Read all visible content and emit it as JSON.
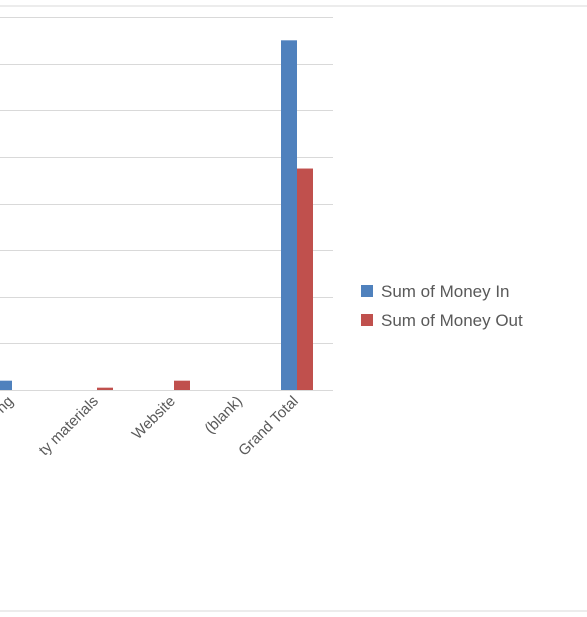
{
  "chart_data": {
    "type": "bar",
    "categories": [
      "ng",
      "ty materials",
      "Website",
      "(blank)",
      "Grand Total"
    ],
    "series": [
      {
        "name": "Sum of Money In",
        "values": [
          2,
          0,
          0,
          0,
          75
        ]
      },
      {
        "name": "Sum of Money Out",
        "values": [
          0,
          0.5,
          2,
          0,
          47.5
        ]
      }
    ],
    "ylim": [
      0,
      80
    ],
    "grid": true,
    "legend_position": "right",
    "colors": {
      "money_in": "#4f81bd",
      "money_out": "#c0504d",
      "grid": "#d9d9d9"
    }
  }
}
